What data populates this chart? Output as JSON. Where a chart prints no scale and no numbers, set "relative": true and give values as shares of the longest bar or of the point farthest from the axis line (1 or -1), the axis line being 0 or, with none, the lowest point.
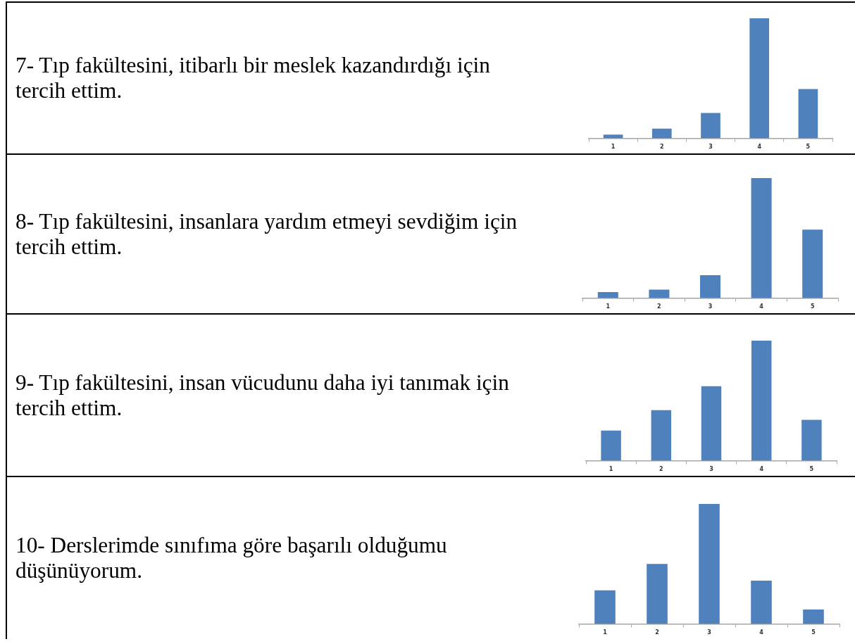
{
  "chart_data": [
    {
      "type": "bar",
      "title": "7- Tıp fakültesini, itibarlı bir meslek kazandırdığı için tercih ettim.",
      "categories": [
        "1",
        "2",
        "3",
        "4",
        "5"
      ],
      "values": [
        0.03,
        0.08,
        0.21,
        1,
        0.41
      ],
      "color": "#4f81bd",
      "relative": true
    },
    {
      "type": "bar",
      "title": "8- Tıp fakültesini, insanlara yardım etmeyi sevdiğim için tercih ettim.",
      "categories": [
        "1",
        "2",
        "3",
        "4",
        "5"
      ],
      "values": [
        0.05,
        0.07,
        0.19,
        1,
        0.57
      ],
      "color": "#4f81bd",
      "relative": true
    },
    {
      "type": "bar",
      "title": "9- Tıp fakültesini, insan vücudunu daha iyi tanımak için tercih ettim.",
      "categories": [
        "1",
        "2",
        "3",
        "4",
        "5"
      ],
      "values": [
        0.25,
        0.42,
        0.62,
        1,
        0.34
      ],
      "color": "#4f81bd",
      "relative": true
    },
    {
      "type": "bar",
      "title": "10- Derslerimde sınıfıma göre başarılı olduğumu düşünüyorum.",
      "categories": [
        "1",
        "2",
        "3",
        "4",
        "5"
      ],
      "values": [
        0.28,
        0.5,
        1,
        0.36,
        0.12
      ],
      "color": "#4f81bd",
      "relative": true
    }
  ]
}
